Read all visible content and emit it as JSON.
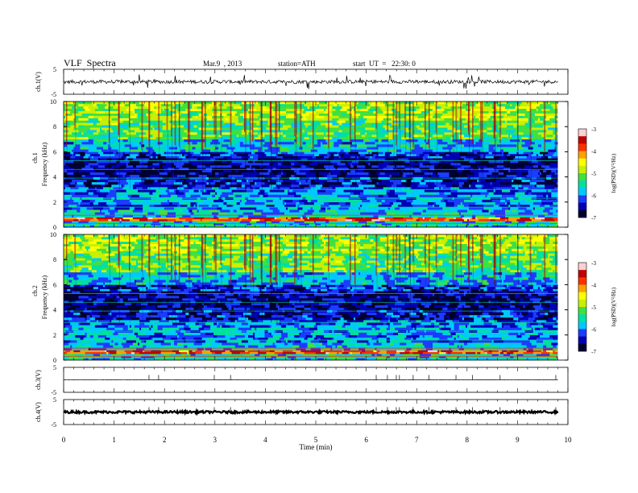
{
  "header": {
    "title": "VLF  Spectra",
    "date": "Mar.9  , 2013",
    "station": "station=ATH",
    "start": "start  UT  =   22:30: 0"
  },
  "colors": {
    "axis": "#000000",
    "colormap": [
      "#000030",
      "#0000b4",
      "#1a3cff",
      "#00c8ff",
      "#00e0a0",
      "#40e040",
      "#c8f000",
      "#ffff00",
      "#ffa000",
      "#ff3000",
      "#c00000",
      "#ffd0d0"
    ]
  },
  "chart_data": [
    {
      "type": "line",
      "name": "ch1-waveform",
      "ylabel": "ch.1(V)",
      "ylim": [
        -5,
        5
      ],
      "yticks": [
        "5",
        "-5"
      ],
      "x": [
        0,
        9.8
      ],
      "baseline": 0,
      "series": [
        {
          "values": "noisy voltage trace around 0 V with spikes to about +/-3 V"
        }
      ]
    },
    {
      "type": "heatmap",
      "name": "ch1-spectrogram",
      "ylabel_top": "ch.1",
      "ylabel": "Frequency  (kHz)",
      "ylim": [
        0,
        10
      ],
      "yticks": [
        "0",
        "2",
        "4",
        "6",
        "8",
        "10"
      ],
      "xlim": [
        0,
        10
      ],
      "data_end_min": 9.8,
      "bands": [
        {
          "from": 0.0,
          "to": 0.5,
          "level": -5.6
        },
        {
          "from": 0.5,
          "to": 0.8,
          "level": -3.8
        },
        {
          "from": 0.8,
          "to": 1.4,
          "level": -5.8
        },
        {
          "from": 1.4,
          "to": 2.0,
          "level": -6.0
        },
        {
          "from": 2.0,
          "to": 2.6,
          "level": -5.9
        },
        {
          "from": 2.6,
          "to": 3.2,
          "level": -6.1
        },
        {
          "from": 3.2,
          "to": 4.0,
          "level": -6.4
        },
        {
          "from": 4.0,
          "to": 5.5,
          "level": -6.6
        },
        {
          "from": 5.5,
          "to": 6.0,
          "level": -6.3
        },
        {
          "from": 6.0,
          "to": 7.0,
          "level": -5.8
        },
        {
          "from": 7.0,
          "to": 8.5,
          "level": -5.2
        },
        {
          "from": 8.5,
          "to": 10.0,
          "level": -4.9
        }
      ],
      "colorbar": {
        "label": "log(PSD)(V²/Hz)",
        "range": [
          -7,
          -3
        ],
        "ticks": [
          "-3",
          "-4",
          "-5",
          "-6",
          "-7"
        ]
      }
    },
    {
      "type": "heatmap",
      "name": "ch2-spectrogram",
      "ylabel_top": "ch.2",
      "ylabel": "Frequency  (kHz)",
      "ylim": [
        0,
        10
      ],
      "yticks": [
        "0",
        "2",
        "4",
        "6",
        "8",
        "10"
      ],
      "xlim": [
        0,
        10
      ],
      "data_end_min": 9.8,
      "bands": [
        {
          "from": 0.0,
          "to": 0.5,
          "level": -5.6
        },
        {
          "from": 0.5,
          "to": 0.8,
          "level": -3.8
        },
        {
          "from": 0.8,
          "to": 1.4,
          "level": -5.8
        },
        {
          "from": 1.4,
          "to": 2.0,
          "level": -6.0
        },
        {
          "from": 2.0,
          "to": 2.6,
          "level": -5.9
        },
        {
          "from": 2.6,
          "to": 3.2,
          "level": -6.1
        },
        {
          "from": 3.2,
          "to": 4.0,
          "level": -6.4
        },
        {
          "from": 4.0,
          "to": 5.5,
          "level": -6.6
        },
        {
          "from": 5.5,
          "to": 6.0,
          "level": -6.3
        },
        {
          "from": 6.0,
          "to": 7.0,
          "level": -5.8
        },
        {
          "from": 7.0,
          "to": 8.5,
          "level": -5.2
        },
        {
          "from": 8.5,
          "to": 10.0,
          "level": -4.9
        }
      ],
      "colorbar": {
        "label": "log(PSD)(V²/Hz)",
        "range": [
          -7,
          -3
        ],
        "ticks": [
          "-3",
          "-4",
          "-5",
          "-6",
          "-7"
        ]
      }
    },
    {
      "type": "line",
      "name": "ch3-waveform",
      "ylabel": "ch.3(V)",
      "ylim": [
        -5,
        5
      ],
      "yticks": [
        "5",
        "-5"
      ],
      "x": [
        0,
        9.8
      ],
      "baseline": 0,
      "series": [
        {
          "values": "flat trace near 0 V"
        }
      ]
    },
    {
      "type": "line",
      "name": "ch4-waveform",
      "ylabel": "ch.4(V)",
      "ylim": [
        -5,
        5
      ],
      "yticks": [
        "5",
        "-5"
      ],
      "x": [
        0,
        9.8
      ],
      "baseline": 0,
      "series": [
        {
          "values": "thick noisy band near 0 V"
        }
      ]
    }
  ],
  "xaxis": {
    "label": "Time  (min)",
    "ticks": [
      "0",
      "1",
      "2",
      "3",
      "4",
      "5",
      "6",
      "7",
      "8",
      "9",
      "10"
    ]
  }
}
